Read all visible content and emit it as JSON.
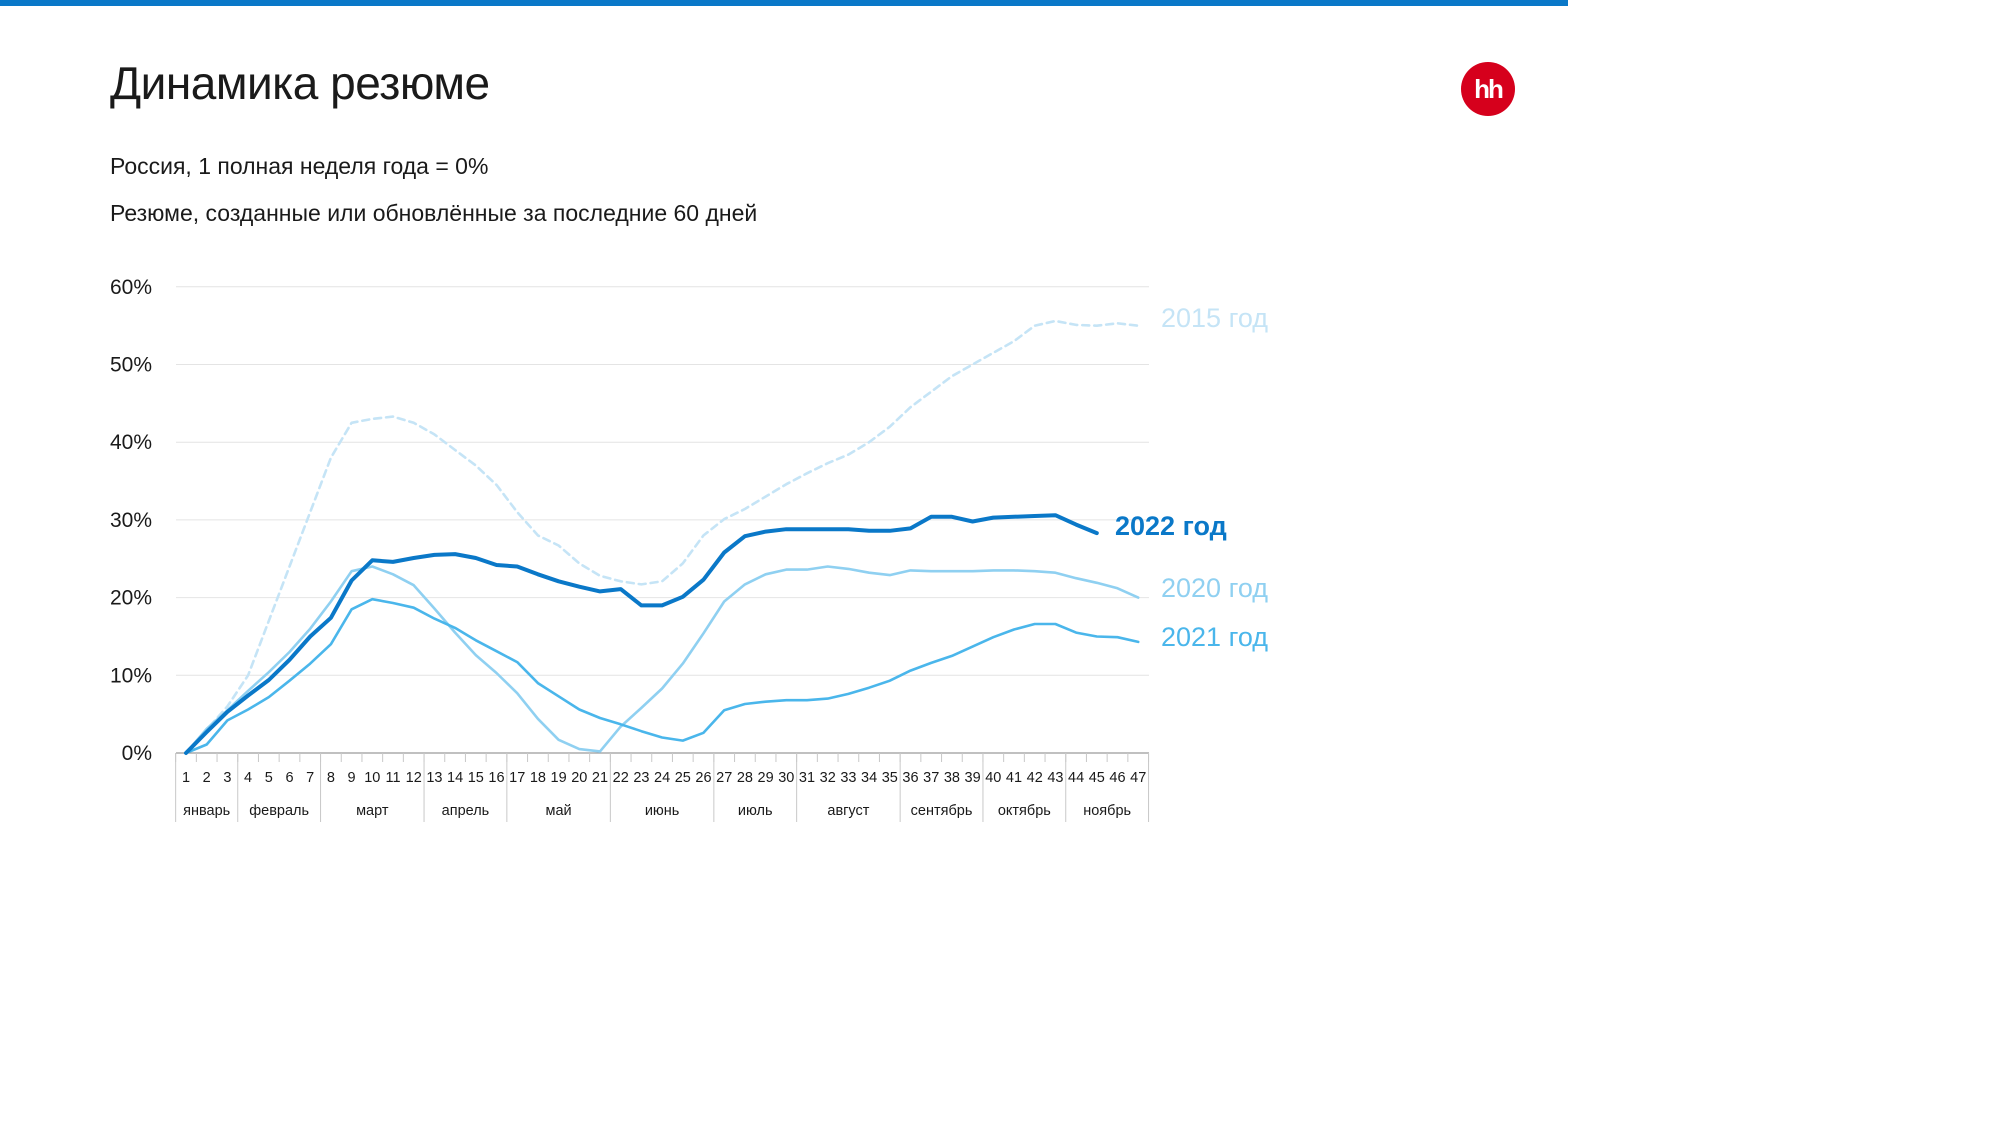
{
  "header": {
    "title": "Динамика резюме",
    "subtitle_1": "Россия, 1 полная неделя года = 0%",
    "subtitle_2": "Резюме, созданные или обновлённые за последние 60 дней",
    "logo_text": "hh",
    "logo_color": "#d6001c",
    "accent_color": "#0a78c8"
  },
  "chart_data": {
    "type": "line",
    "title": "Динамика резюме",
    "xlabel": "",
    "ylabel": "",
    "ylim": [
      0,
      60
    ],
    "yticks": [
      "0%",
      "10%",
      "20%",
      "30%",
      "40%",
      "50%",
      "60%"
    ],
    "ytick_values": [
      0,
      10,
      20,
      30,
      40,
      50,
      60
    ],
    "x": [
      1,
      2,
      3,
      4,
      5,
      6,
      7,
      8,
      9,
      10,
      11,
      12,
      13,
      14,
      15,
      16,
      17,
      18,
      19,
      20,
      21,
      22,
      23,
      24,
      25,
      26,
      27,
      28,
      29,
      30,
      31,
      32,
      33,
      34,
      35,
      36,
      37,
      38,
      39,
      40,
      41,
      42,
      43,
      44,
      45,
      46,
      47
    ],
    "months": [
      {
        "name": "январь",
        "weeks": [
          1,
          3
        ]
      },
      {
        "name": "февраль",
        "weeks": [
          4,
          7
        ]
      },
      {
        "name": "март",
        "weeks": [
          8,
          12
        ]
      },
      {
        "name": "апрель",
        "weeks": [
          13,
          16
        ]
      },
      {
        "name": "май",
        "weeks": [
          17,
          21
        ]
      },
      {
        "name": "июнь",
        "weeks": [
          22,
          26
        ]
      },
      {
        "name": "июль",
        "weeks": [
          27,
          30
        ]
      },
      {
        "name": "август",
        "weeks": [
          31,
          35
        ]
      },
      {
        "name": "сентябрь",
        "weeks": [
          36,
          39
        ]
      },
      {
        "name": "октябрь",
        "weeks": [
          40,
          43
        ]
      },
      {
        "name": "ноябрь",
        "weeks": [
          44,
          47
        ]
      }
    ],
    "grid": true,
    "series": [
      {
        "name": "2015 год",
        "color": "#c5e4f6",
        "dashed": true,
        "bold": false,
        "values": [
          0,
          3,
          6,
          10,
          17,
          24,
          31,
          38,
          42.5,
          43,
          43.3,
          42.5,
          41,
          39,
          37,
          34.5,
          31,
          28,
          26.7,
          24.4,
          22.8,
          22.1,
          21.7,
          22.1,
          24.4,
          28,
          30.1,
          31.4,
          33,
          34.6,
          36,
          37.3,
          38.4,
          40,
          42,
          44.5,
          46.5,
          48.5,
          50,
          51.5,
          53,
          55,
          55.6,
          55.1,
          55,
          55.3,
          55
        ]
      },
      {
        "name": "2022 год",
        "color": "#0a78c8",
        "dashed": false,
        "bold": true,
        "values": [
          0,
          2.7,
          5.3,
          7.4,
          9.4,
          12,
          15,
          17.4,
          22.2,
          24.8,
          24.6,
          25.1,
          25.5,
          25.6,
          25.1,
          24.2,
          24,
          23,
          22.1,
          21.4,
          20.8,
          21.1,
          19,
          19,
          20.1,
          22.3,
          25.8,
          27.9,
          28.5,
          28.8,
          28.8,
          28.8,
          28.8,
          28.6,
          28.6,
          28.9,
          30.4,
          30.4,
          29.8,
          30.3,
          30.4,
          30.5,
          30.6,
          29.4,
          28.3,
          null,
          null
        ]
      },
      {
        "name": "2020 год",
        "color": "#8fd0f1",
        "dashed": false,
        "bold": false,
        "values": [
          0,
          3.1,
          5.5,
          8,
          10.4,
          13,
          16,
          19.5,
          23.4,
          24,
          23,
          21.6,
          18.6,
          15.5,
          12.6,
          10.3,
          7.7,
          4.4,
          1.7,
          0.5,
          0.2,
          3.4,
          5.8,
          8.3,
          11.5,
          15.4,
          19.5,
          21.7,
          23,
          23.6,
          23.6,
          24,
          23.7,
          23.2,
          22.9,
          23.5,
          23.4,
          23.4,
          23.4,
          23.5,
          23.5,
          23.4,
          23.2,
          22.5,
          21.9,
          21.2,
          20
        ]
      },
      {
        "name": "2021 год",
        "color": "#4ab6eb",
        "dashed": false,
        "bold": false,
        "values": [
          0,
          1.1,
          4.2,
          5.6,
          7.2,
          9.3,
          11.5,
          14,
          18.5,
          19.8,
          19.3,
          18.7,
          17.3,
          16.1,
          14.5,
          13.1,
          11.7,
          9,
          7.3,
          5.6,
          4.5,
          3.7,
          2.8,
          2,
          1.6,
          2.6,
          5.5,
          6.3,
          6.6,
          6.8,
          6.8,
          7,
          7.6,
          8.4,
          9.3,
          10.6,
          11.6,
          12.5,
          13.7,
          14.9,
          15.9,
          16.6,
          16.6,
          15.5,
          15,
          14.9,
          14.3
        ]
      }
    ],
    "labels": {
      "2015": "2015 год",
      "2022": "2022 год",
      "2020": "2020 год",
      "2021": "2021 год"
    }
  }
}
